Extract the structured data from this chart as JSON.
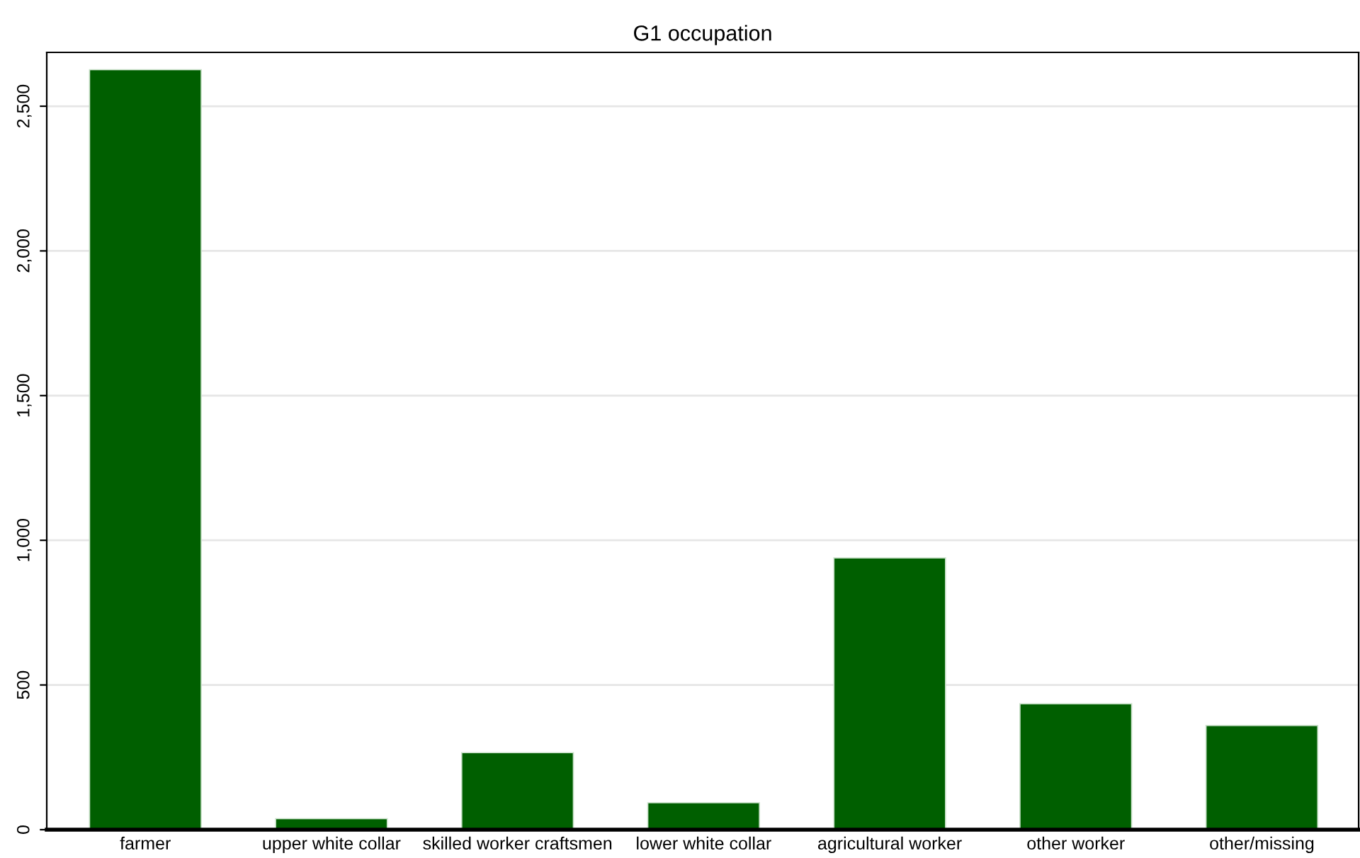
{
  "chart_data": {
    "type": "bar",
    "title": "G1 occupation",
    "categories": [
      "farmer",
      "upper white collar",
      "skilled worker craftsmen",
      "lower white collar",
      "agricultural worker",
      "other worker",
      "other/missing"
    ],
    "values": [
      2626,
      38,
      266,
      93,
      939,
      435,
      360
    ],
    "color": "#005f00",
    "ylim": [
      0,
      2686
    ],
    "yticks": [
      0,
      {
        "value": 500,
        "label": "500"
      },
      {
        "value": 1000,
        "label": "1,000"
      },
      {
        "value": 1500,
        "label": "1,500"
      },
      {
        "value": 2000,
        "label": "2,000"
      },
      {
        "value": 2500,
        "label": "2,500"
      }
    ],
    "grid": "y"
  }
}
